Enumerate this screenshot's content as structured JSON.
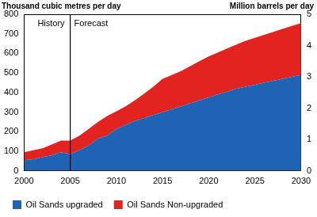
{
  "chart_data": {
    "type": "area",
    "stacked": true,
    "y_label": "Thousand cubic metres per day",
    "y2_label": "Million barrels per day",
    "x": [
      2000,
      2001,
      2002,
      2003,
      2004,
      2005,
      2006,
      2007,
      2008,
      2009,
      2010,
      2011,
      2012,
      2013,
      2014,
      2015,
      2016,
      2017,
      2018,
      2019,
      2020,
      2021,
      2022,
      2023,
      2024,
      2025,
      2026,
      2027,
      2028,
      2029,
      2030
    ],
    "series": [
      {
        "name": "Oil Sands upgraded",
        "color": "#1f63b5",
        "values": [
          55,
          60,
          70,
          80,
          95,
          85,
          105,
          130,
          165,
          180,
          215,
          235,
          255,
          270,
          285,
          300,
          315,
          330,
          345,
          360,
          375,
          390,
          405,
          420,
          430,
          440,
          450,
          460,
          470,
          480,
          490
        ]
      },
      {
        "name": "Oil Sands Non-upgraded",
        "color": "#e3231f",
        "values": [
          40,
          45,
          45,
          55,
          60,
          70,
          75,
          85,
          85,
          100,
          90,
          95,
          105,
          125,
          145,
          170,
          175,
          180,
          190,
          200,
          210,
          215,
          220,
          225,
          235,
          240,
          245,
          250,
          255,
          260,
          265
        ]
      }
    ],
    "xlim": [
      2000,
      2030
    ],
    "xticks": [
      2000,
      2005,
      2010,
      2015,
      2020,
      2025,
      2030
    ],
    "ylim": [
      0,
      800
    ],
    "yticks": [
      0,
      100,
      200,
      300,
      400,
      500,
      600,
      700,
      800
    ],
    "y2lim": [
      0,
      5
    ],
    "y2ticks": [
      0,
      1,
      2,
      3,
      4,
      5
    ],
    "annotations": [
      {
        "type": "vline",
        "x": 2005,
        "left_text": "History",
        "right_text": "Forecast"
      }
    ],
    "grid": false,
    "legend": "bottom"
  }
}
